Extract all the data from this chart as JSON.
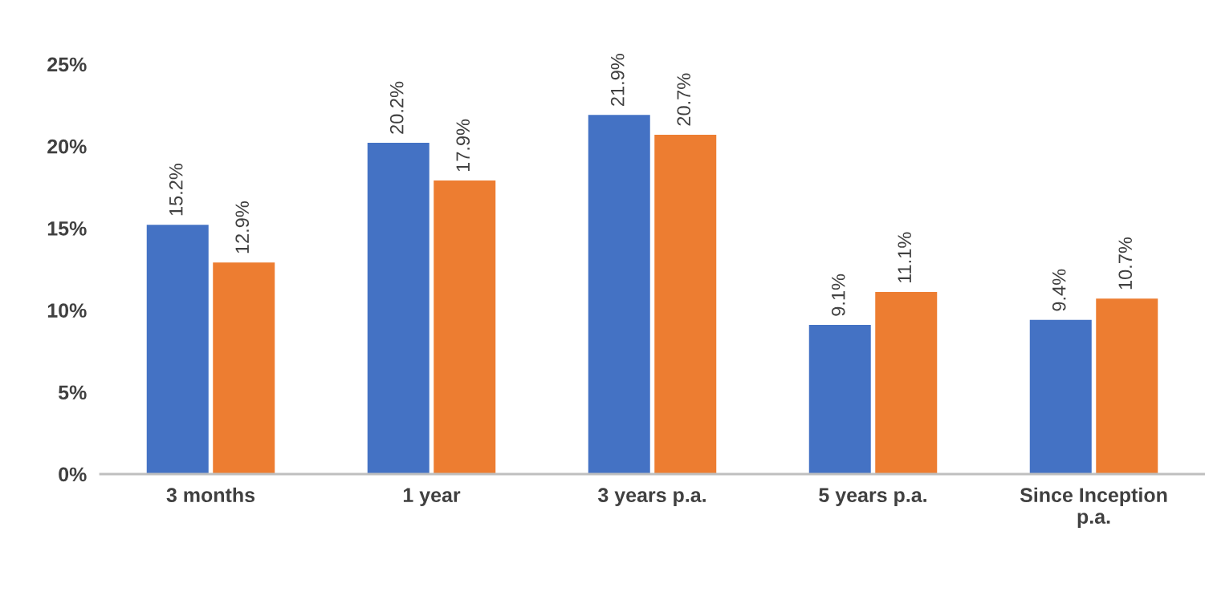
{
  "chart_data": {
    "type": "bar",
    "categories": [
      "3 months",
      "1 year",
      "3 years p.a.",
      "5 years p.a.",
      "Since Inception\np.a."
    ],
    "series": [
      {
        "color": "#4472c4",
        "values": [
          15.2,
          20.2,
          21.9,
          9.1,
          9.4
        ],
        "value_labels": [
          "15.2%",
          "20.2%",
          "21.9%",
          "9.1%",
          "9.4%"
        ]
      },
      {
        "color": "#ed7d31",
        "values": [
          12.9,
          17.9,
          20.7,
          11.1,
          10.7
        ],
        "value_labels": [
          "12.9%",
          "17.9%",
          "20.7%",
          "11.1%",
          "10.7%"
        ]
      }
    ],
    "ylim": [
      0,
      25
    ],
    "yticks": [
      {
        "value": 0,
        "label": "0%"
      },
      {
        "value": 5,
        "label": "5%"
      },
      {
        "value": 10,
        "label": "10%"
      },
      {
        "value": 15,
        "label": "15%"
      },
      {
        "value": 20,
        "label": "20%"
      },
      {
        "value": 25,
        "label": "25%"
      }
    ],
    "grid": false,
    "legend": false
  }
}
